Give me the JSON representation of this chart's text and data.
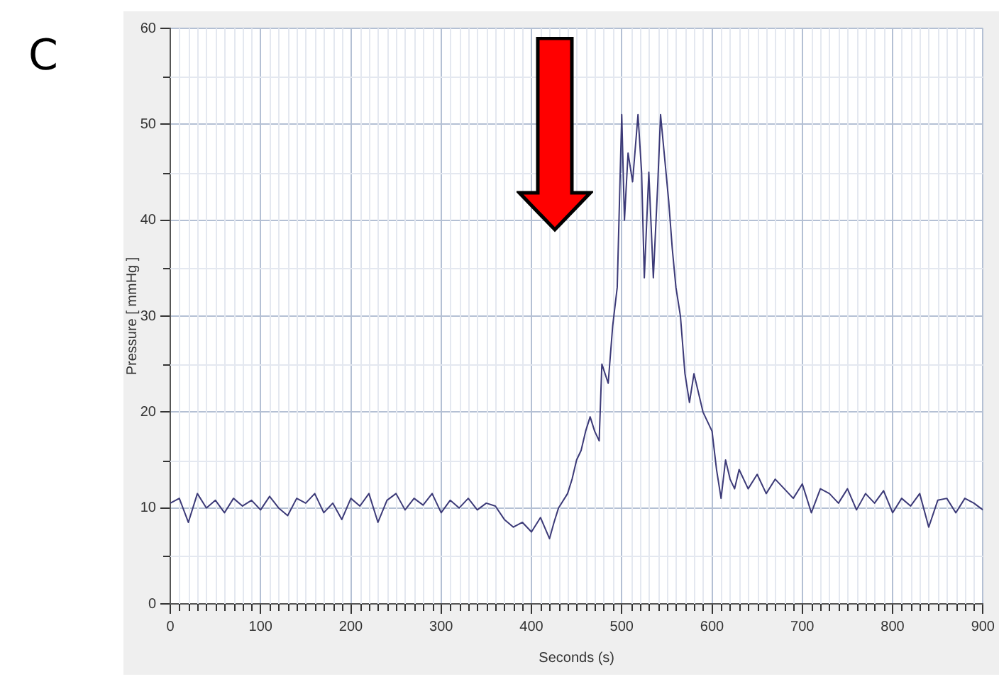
{
  "chart_data": {
    "type": "line",
    "xlabel": "Seconds (s)",
    "ylabel": "Pressure [ mmHg ]",
    "annotations": [
      "C"
    ],
    "xlim": [
      0,
      900
    ],
    "xticks": [
      0,
      100,
      200,
      300,
      400,
      500,
      600,
      700,
      800,
      900
    ],
    "ylim": [
      0,
      60
    ],
    "yticks": [
      0,
      10,
      20,
      30,
      40,
      50,
      60
    ],
    "grid": true,
    "legend": false,
    "marker": "none",
    "line_style": "solid",
    "series": [
      {
        "color": "#3c3a78",
        "x": [
          0,
          10,
          20,
          30,
          40,
          50,
          60,
          70,
          80,
          90,
          100,
          110,
          120,
          130,
          140,
          150,
          160,
          170,
          180,
          190,
          200,
          210,
          220,
          230,
          240,
          250,
          260,
          270,
          280,
          290,
          300,
          310,
          320,
          330,
          340,
          350,
          360,
          370,
          380,
          390,
          400,
          410,
          420,
          425,
          430,
          440,
          445,
          450,
          455,
          460,
          465,
          470,
          475,
          478,
          485,
          490,
          495,
          500,
          503,
          507,
          512,
          518,
          522,
          525,
          530,
          535,
          540,
          543,
          548,
          552,
          556,
          560,
          565,
          570,
          575,
          580,
          585,
          590,
          595,
          600,
          605,
          610,
          615,
          620,
          625,
          630,
          640,
          650,
          660,
          670,
          680,
          690,
          700,
          710,
          720,
          730,
          740,
          750,
          760,
          770,
          780,
          790,
          800,
          810,
          820,
          830,
          840,
          850,
          860,
          870,
          880,
          890,
          900
        ],
        "values": [
          10.5,
          11,
          8.5,
          11.5,
          10,
          10.8,
          9.5,
          11,
          10.2,
          10.8,
          9.8,
          11.2,
          10,
          9.2,
          11,
          10.5,
          11.5,
          9.5,
          10.5,
          8.8,
          11,
          10.2,
          11.5,
          8.5,
          10.8,
          11.5,
          9.8,
          11,
          10.3,
          11.5,
          9.5,
          10.8,
          10,
          11,
          9.8,
          10.5,
          10.2,
          8.8,
          8,
          8.5,
          7.5,
          9,
          6.8,
          8.5,
          10,
          11.5,
          13,
          15,
          16,
          18,
          19.5,
          18,
          17,
          25,
          23,
          29,
          33,
          51,
          40,
          47,
          44,
          51,
          45,
          34,
          45,
          34,
          44,
          51,
          46,
          42,
          37,
          33,
          30,
          24,
          21,
          24,
          22,
          20,
          19,
          18,
          14,
          11,
          15,
          13,
          12,
          14,
          12,
          13.5,
          11.5,
          13,
          12,
          11,
          12.5,
          9.5,
          12,
          11.5,
          10.5,
          12,
          9.8,
          11.5,
          10.5,
          11.8,
          9.5,
          11,
          10.2,
          11.5,
          8,
          10.8,
          11,
          9.5,
          11,
          10.5,
          9.8
        ]
      }
    ]
  }
}
